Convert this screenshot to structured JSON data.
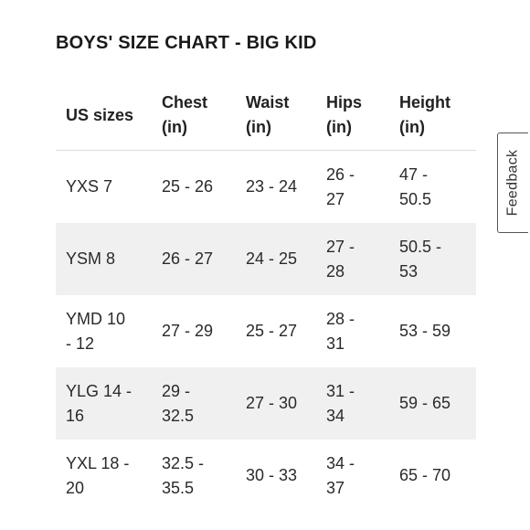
{
  "title": "BOYS' SIZE CHART - BIG KID",
  "feedback_label": "Feedback",
  "table": {
    "headers": [
      [
        "US sizes",
        ""
      ],
      [
        "Chest",
        "(in)"
      ],
      [
        "Waist",
        "(in)"
      ],
      [
        "Hips",
        "(in)"
      ],
      [
        "Height",
        "(in)"
      ]
    ],
    "rows": [
      [
        [
          "YXS 7",
          ""
        ],
        [
          "25 - 26",
          ""
        ],
        [
          "23 - 24",
          ""
        ],
        [
          "26 -",
          "27"
        ],
        [
          "47 -",
          "50.5"
        ]
      ],
      [
        [
          "YSM 8",
          ""
        ],
        [
          "26 - 27",
          ""
        ],
        [
          "24 - 25",
          ""
        ],
        [
          "27 -",
          "28"
        ],
        [
          "50.5 -",
          "53"
        ]
      ],
      [
        [
          "YMD 10",
          "- 12"
        ],
        [
          "27 - 29",
          ""
        ],
        [
          "25 - 27",
          ""
        ],
        [
          "28 -",
          "31"
        ],
        [
          "53 - 59",
          ""
        ]
      ],
      [
        [
          "YLG 14 -",
          "16"
        ],
        [
          "29 -",
          "32.5"
        ],
        [
          "27 - 30",
          ""
        ],
        [
          "31 -",
          "34"
        ],
        [
          "59 - 65",
          ""
        ]
      ],
      [
        [
          "YXL 18 -",
          "20"
        ],
        [
          "32.5 -",
          "35.5"
        ],
        [
          "30 - 33",
          ""
        ],
        [
          "34 -",
          "37"
        ],
        [
          "65 - 70",
          ""
        ]
      ]
    ]
  }
}
